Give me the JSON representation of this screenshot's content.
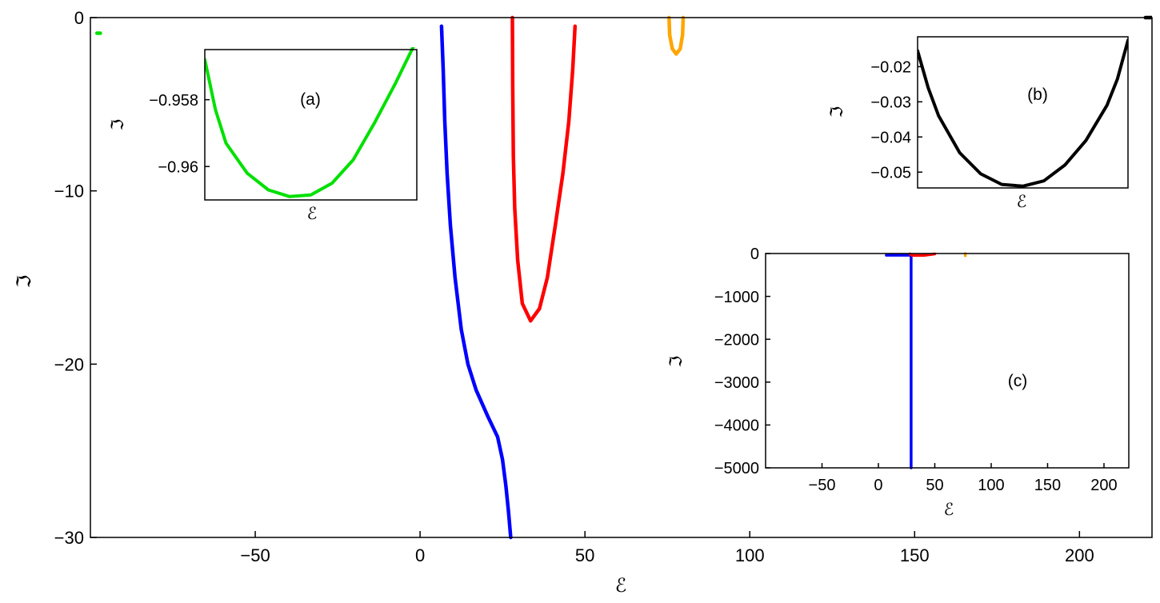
{
  "chart_data": [
    {
      "id": "main",
      "type": "line",
      "xlabel": "ℰ",
      "ylabel": "ℑ",
      "xlim": [
        -100,
        222
      ],
      "ylim": [
        -30,
        0
      ],
      "xticks": [
        -50,
        0,
        50,
        100,
        150,
        200
      ],
      "xtick_labels": [
        "−50",
        "0",
        "50",
        "100",
        "150",
        "200"
      ],
      "yticks": [
        0,
        -10,
        -20,
        -30
      ],
      "ytick_labels": [
        "0",
        "−10",
        "−20",
        "−30"
      ],
      "grid": false,
      "series": [
        {
          "color": "#0000ff",
          "points": [
            [
              6.5,
              -0.5
            ],
            [
              7,
              -3
            ],
            [
              7.5,
              -6
            ],
            [
              8.2,
              -9
            ],
            [
              9.2,
              -12
            ],
            [
              10.6,
              -15
            ],
            [
              12.5,
              -18
            ],
            [
              14.5,
              -20
            ],
            [
              17,
              -21.5
            ],
            [
              20.5,
              -23
            ],
            [
              23.5,
              -24.2
            ],
            [
              25,
              -25.5
            ],
            [
              26,
              -27
            ],
            [
              26.8,
              -28.5
            ],
            [
              27.5,
              -30
            ]
          ]
        },
        {
          "color": "#ff0000",
          "points": [
            [
              28,
              0
            ],
            [
              28.1,
              -4
            ],
            [
              28.3,
              -8
            ],
            [
              28.7,
              -11
            ],
            [
              29.6,
              -14
            ],
            [
              31,
              -16.5
            ],
            [
              33.5,
              -17.5
            ],
            [
              36.2,
              -16.8
            ],
            [
              38.6,
              -15
            ],
            [
              41,
              -12
            ],
            [
              43.3,
              -9
            ],
            [
              45.1,
              -6
            ],
            [
              46.3,
              -3
            ],
            [
              47,
              -0.5
            ]
          ]
        },
        {
          "color": "#ffa500",
          "points": [
            [
              75.5,
              0
            ],
            [
              75.7,
              -1
            ],
            [
              76.5,
              -1.8
            ],
            [
              77.7,
              -2.1
            ],
            [
              78.9,
              -1.8
            ],
            [
              79.6,
              -1
            ],
            [
              79.8,
              0
            ]
          ]
        },
        {
          "color": "#00e000",
          "points": [
            [
              -98,
              -0.9
            ],
            [
              -97,
              -0.9
            ]
          ]
        },
        {
          "color": "#000000",
          "points": [
            [
              220,
              0
            ],
            [
              222,
              0
            ]
          ]
        }
      ]
    },
    {
      "id": "inset-a",
      "type": "line",
      "annotation": "(a)",
      "xlabel": "ℰ",
      "ylabel": "ℑ",
      "xlim": [
        0,
        1
      ],
      "ylim": [
        -0.961,
        -0.9565
      ],
      "yticks": [
        -0.958,
        -0.96
      ],
      "ytick_labels": [
        "−0.958",
        "−0.96"
      ],
      "series": [
        {
          "color": "#00e000",
          "points": [
            [
              0,
              -0.9568
            ],
            [
              0.05,
              -0.9583
            ],
            [
              0.1,
              -0.9593
            ],
            [
              0.2,
              -0.9602
            ],
            [
              0.3,
              -0.9607
            ],
            [
              0.4,
              -0.9609
            ],
            [
              0.5,
              -0.96085
            ],
            [
              0.6,
              -0.9605
            ],
            [
              0.7,
              -0.9598
            ],
            [
              0.8,
              -0.9587
            ],
            [
              0.9,
              -0.9575
            ],
            [
              1,
              -0.9562
            ]
          ]
        }
      ]
    },
    {
      "id": "inset-b",
      "type": "line",
      "annotation": "(b)",
      "xlabel": "ℰ",
      "ylabel": "ℑ",
      "xlim": [
        0,
        1
      ],
      "ylim": [
        -0.0545,
        -0.0115
      ],
      "yticks": [
        -0.02,
        -0.03,
        -0.04,
        -0.05
      ],
      "ytick_labels": [
        "−0.02",
        "−0.03",
        "−0.04",
        "−0.05"
      ],
      "series": [
        {
          "color": "#000000",
          "points": [
            [
              0,
              -0.0155
            ],
            [
              0.05,
              -0.026
            ],
            [
              0.1,
              -0.034
            ],
            [
              0.2,
              -0.0445
            ],
            [
              0.3,
              -0.0505
            ],
            [
              0.4,
              -0.0535
            ],
            [
              0.5,
              -0.054
            ],
            [
              0.6,
              -0.0525
            ],
            [
              0.7,
              -0.048
            ],
            [
              0.8,
              -0.041
            ],
            [
              0.9,
              -0.031
            ],
            [
              0.95,
              -0.0235
            ],
            [
              1,
              -0.0125
            ]
          ]
        }
      ]
    },
    {
      "id": "inset-c",
      "type": "line",
      "annotation": "(c)",
      "xlabel": "ℰ",
      "ylabel": "ℑ",
      "xlim": [
        -100,
        222
      ],
      "ylim": [
        -5000,
        0
      ],
      "xticks": [
        -50,
        0,
        50,
        100,
        150,
        200
      ],
      "xtick_labels": [
        "−50",
        "0",
        "50",
        "100",
        "150",
        "200"
      ],
      "yticks": [
        0,
        -1000,
        -2000,
        -3000,
        -4000,
        -5000
      ],
      "ytick_labels": [
        "0",
        "−1000",
        "−2000",
        "−3000",
        "−4000",
        "−5000"
      ],
      "series": [
        {
          "color": "#0000ff",
          "points": [
            [
              7,
              -40
            ],
            [
              28,
              -40
            ],
            [
              29,
              -60
            ],
            [
              29,
              -5000
            ]
          ]
        },
        {
          "color": "#ff0000",
          "points": [
            [
              28,
              -10
            ],
            [
              30,
              -45
            ],
            [
              40,
              -45
            ],
            [
              47,
              -20
            ],
            [
              50,
              -10
            ]
          ]
        },
        {
          "color": "#ffa500",
          "points": [
            [
              77,
              0
            ],
            [
              77,
              -50
            ]
          ]
        }
      ]
    }
  ]
}
